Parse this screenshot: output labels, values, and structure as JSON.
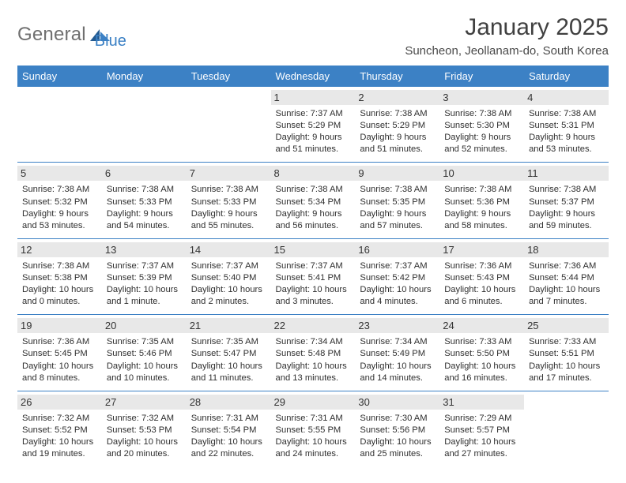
{
  "logo": {
    "word1": "General",
    "word2": "Blue",
    "text_color": "#707070",
    "accent_color": "#3c81c5"
  },
  "title": "January 2025",
  "subtitle": "Suncheon, Jeollanam-do, South Korea",
  "weekday_header_bg": "#3c81c5",
  "weekday_header_fg": "#ffffff",
  "daynum_bg": "#e8e8e8",
  "row_divider_color": "#3c81c5",
  "background_color": "#ffffff",
  "text_color": "#333333",
  "font_sizes": {
    "title": 30,
    "subtitle": 15,
    "weekday": 13,
    "daynum": 13,
    "details": 11.2
  },
  "weekdays": [
    "Sunday",
    "Monday",
    "Tuesday",
    "Wednesday",
    "Thursday",
    "Friday",
    "Saturday"
  ],
  "weeks": [
    [
      {
        "n": "",
        "sunrise": "",
        "sunset": "",
        "daylight1": "",
        "daylight2": ""
      },
      {
        "n": "",
        "sunrise": "",
        "sunset": "",
        "daylight1": "",
        "daylight2": ""
      },
      {
        "n": "",
        "sunrise": "",
        "sunset": "",
        "daylight1": "",
        "daylight2": ""
      },
      {
        "n": "1",
        "sunrise": "Sunrise: 7:37 AM",
        "sunset": "Sunset: 5:29 PM",
        "daylight1": "Daylight: 9 hours",
        "daylight2": "and 51 minutes."
      },
      {
        "n": "2",
        "sunrise": "Sunrise: 7:38 AM",
        "sunset": "Sunset: 5:29 PM",
        "daylight1": "Daylight: 9 hours",
        "daylight2": "and 51 minutes."
      },
      {
        "n": "3",
        "sunrise": "Sunrise: 7:38 AM",
        "sunset": "Sunset: 5:30 PM",
        "daylight1": "Daylight: 9 hours",
        "daylight2": "and 52 minutes."
      },
      {
        "n": "4",
        "sunrise": "Sunrise: 7:38 AM",
        "sunset": "Sunset: 5:31 PM",
        "daylight1": "Daylight: 9 hours",
        "daylight2": "and 53 minutes."
      }
    ],
    [
      {
        "n": "5",
        "sunrise": "Sunrise: 7:38 AM",
        "sunset": "Sunset: 5:32 PM",
        "daylight1": "Daylight: 9 hours",
        "daylight2": "and 53 minutes."
      },
      {
        "n": "6",
        "sunrise": "Sunrise: 7:38 AM",
        "sunset": "Sunset: 5:33 PM",
        "daylight1": "Daylight: 9 hours",
        "daylight2": "and 54 minutes."
      },
      {
        "n": "7",
        "sunrise": "Sunrise: 7:38 AM",
        "sunset": "Sunset: 5:33 PM",
        "daylight1": "Daylight: 9 hours",
        "daylight2": "and 55 minutes."
      },
      {
        "n": "8",
        "sunrise": "Sunrise: 7:38 AM",
        "sunset": "Sunset: 5:34 PM",
        "daylight1": "Daylight: 9 hours",
        "daylight2": "and 56 minutes."
      },
      {
        "n": "9",
        "sunrise": "Sunrise: 7:38 AM",
        "sunset": "Sunset: 5:35 PM",
        "daylight1": "Daylight: 9 hours",
        "daylight2": "and 57 minutes."
      },
      {
        "n": "10",
        "sunrise": "Sunrise: 7:38 AM",
        "sunset": "Sunset: 5:36 PM",
        "daylight1": "Daylight: 9 hours",
        "daylight2": "and 58 minutes."
      },
      {
        "n": "11",
        "sunrise": "Sunrise: 7:38 AM",
        "sunset": "Sunset: 5:37 PM",
        "daylight1": "Daylight: 9 hours",
        "daylight2": "and 59 minutes."
      }
    ],
    [
      {
        "n": "12",
        "sunrise": "Sunrise: 7:38 AM",
        "sunset": "Sunset: 5:38 PM",
        "daylight1": "Daylight: 10 hours",
        "daylight2": "and 0 minutes."
      },
      {
        "n": "13",
        "sunrise": "Sunrise: 7:37 AM",
        "sunset": "Sunset: 5:39 PM",
        "daylight1": "Daylight: 10 hours",
        "daylight2": "and 1 minute."
      },
      {
        "n": "14",
        "sunrise": "Sunrise: 7:37 AM",
        "sunset": "Sunset: 5:40 PM",
        "daylight1": "Daylight: 10 hours",
        "daylight2": "and 2 minutes."
      },
      {
        "n": "15",
        "sunrise": "Sunrise: 7:37 AM",
        "sunset": "Sunset: 5:41 PM",
        "daylight1": "Daylight: 10 hours",
        "daylight2": "and 3 minutes."
      },
      {
        "n": "16",
        "sunrise": "Sunrise: 7:37 AM",
        "sunset": "Sunset: 5:42 PM",
        "daylight1": "Daylight: 10 hours",
        "daylight2": "and 4 minutes."
      },
      {
        "n": "17",
        "sunrise": "Sunrise: 7:36 AM",
        "sunset": "Sunset: 5:43 PM",
        "daylight1": "Daylight: 10 hours",
        "daylight2": "and 6 minutes."
      },
      {
        "n": "18",
        "sunrise": "Sunrise: 7:36 AM",
        "sunset": "Sunset: 5:44 PM",
        "daylight1": "Daylight: 10 hours",
        "daylight2": "and 7 minutes."
      }
    ],
    [
      {
        "n": "19",
        "sunrise": "Sunrise: 7:36 AM",
        "sunset": "Sunset: 5:45 PM",
        "daylight1": "Daylight: 10 hours",
        "daylight2": "and 8 minutes."
      },
      {
        "n": "20",
        "sunrise": "Sunrise: 7:35 AM",
        "sunset": "Sunset: 5:46 PM",
        "daylight1": "Daylight: 10 hours",
        "daylight2": "and 10 minutes."
      },
      {
        "n": "21",
        "sunrise": "Sunrise: 7:35 AM",
        "sunset": "Sunset: 5:47 PM",
        "daylight1": "Daylight: 10 hours",
        "daylight2": "and 11 minutes."
      },
      {
        "n": "22",
        "sunrise": "Sunrise: 7:34 AM",
        "sunset": "Sunset: 5:48 PM",
        "daylight1": "Daylight: 10 hours",
        "daylight2": "and 13 minutes."
      },
      {
        "n": "23",
        "sunrise": "Sunrise: 7:34 AM",
        "sunset": "Sunset: 5:49 PM",
        "daylight1": "Daylight: 10 hours",
        "daylight2": "and 14 minutes."
      },
      {
        "n": "24",
        "sunrise": "Sunrise: 7:33 AM",
        "sunset": "Sunset: 5:50 PM",
        "daylight1": "Daylight: 10 hours",
        "daylight2": "and 16 minutes."
      },
      {
        "n": "25",
        "sunrise": "Sunrise: 7:33 AM",
        "sunset": "Sunset: 5:51 PM",
        "daylight1": "Daylight: 10 hours",
        "daylight2": "and 17 minutes."
      }
    ],
    [
      {
        "n": "26",
        "sunrise": "Sunrise: 7:32 AM",
        "sunset": "Sunset: 5:52 PM",
        "daylight1": "Daylight: 10 hours",
        "daylight2": "and 19 minutes."
      },
      {
        "n": "27",
        "sunrise": "Sunrise: 7:32 AM",
        "sunset": "Sunset: 5:53 PM",
        "daylight1": "Daylight: 10 hours",
        "daylight2": "and 20 minutes."
      },
      {
        "n": "28",
        "sunrise": "Sunrise: 7:31 AM",
        "sunset": "Sunset: 5:54 PM",
        "daylight1": "Daylight: 10 hours",
        "daylight2": "and 22 minutes."
      },
      {
        "n": "29",
        "sunrise": "Sunrise: 7:31 AM",
        "sunset": "Sunset: 5:55 PM",
        "daylight1": "Daylight: 10 hours",
        "daylight2": "and 24 minutes."
      },
      {
        "n": "30",
        "sunrise": "Sunrise: 7:30 AM",
        "sunset": "Sunset: 5:56 PM",
        "daylight1": "Daylight: 10 hours",
        "daylight2": "and 25 minutes."
      },
      {
        "n": "31",
        "sunrise": "Sunrise: 7:29 AM",
        "sunset": "Sunset: 5:57 PM",
        "daylight1": "Daylight: 10 hours",
        "daylight2": "and 27 minutes."
      },
      {
        "n": "",
        "sunrise": "",
        "sunset": "",
        "daylight1": "",
        "daylight2": ""
      }
    ]
  ]
}
